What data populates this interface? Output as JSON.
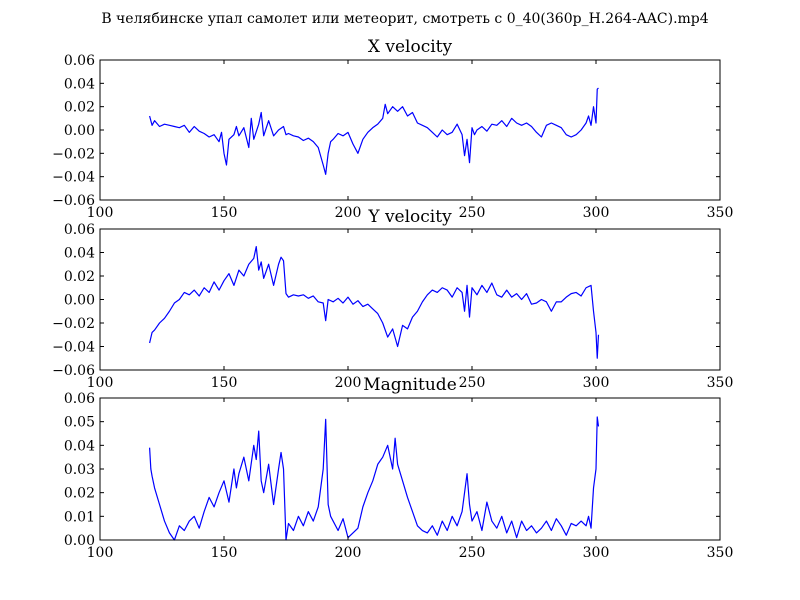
{
  "figure": {
    "suptitle": "В челябинске упал самолет или метеорит, смотреть с 0_40(360p_H.264-AAC).mp4"
  },
  "style": {
    "line_color": "#0000ff",
    "axes_color": "#000000",
    "background": "#ffffff"
  },
  "chart_data": [
    {
      "type": "line",
      "title": "X velocity",
      "xlabel": "",
      "ylabel": "",
      "xlim": [
        100,
        350
      ],
      "ylim": [
        -0.06,
        0.06
      ],
      "xticks": [
        100,
        150,
        200,
        250,
        300,
        350
      ],
      "yticks": [
        -0.06,
        -0.04,
        -0.02,
        0.0,
        0.02,
        0.04,
        0.06
      ],
      "xticklabels": [
        "100",
        "150",
        "200",
        "250",
        "300",
        "350"
      ],
      "yticklabels": [
        "−0.06",
        "−0.04",
        "−0.02",
        "0.00",
        "0.02",
        "0.04",
        "0.06"
      ],
      "grid": false,
      "series": [
        {
          "x": [
            120,
            121,
            122,
            124,
            126,
            128,
            130,
            132,
            134,
            136,
            138,
            140,
            142,
            144,
            146,
            148,
            149,
            150,
            151,
            152,
            154,
            155,
            156,
            158,
            160,
            161,
            162,
            164,
            165,
            166,
            168,
            170,
            172,
            174,
            175,
            176,
            178,
            180,
            182,
            184,
            186,
            188,
            190,
            191,
            192,
            193,
            194,
            196,
            198,
            200,
            202,
            204,
            206,
            208,
            210,
            212,
            214,
            215,
            216,
            218,
            220,
            222,
            224,
            226,
            228,
            230,
            232,
            234,
            236,
            238,
            240,
            242,
            244,
            246,
            247,
            248,
            249,
            250,
            251,
            252,
            254,
            256,
            258,
            260,
            262,
            264,
            266,
            268,
            270,
            272,
            274,
            276,
            278,
            280,
            282,
            284,
            286,
            288,
            290,
            292,
            294,
            296,
            297,
            298,
            299,
            300,
            300.5,
            301
          ],
          "y": [
            0.012,
            0.004,
            0.008,
            0.003,
            0.005,
            0.004,
            0.003,
            0.002,
            0.004,
            -0.002,
            0.003,
            -0.001,
            -0.003,
            -0.006,
            -0.004,
            -0.01,
            -0.002,
            -0.02,
            -0.03,
            -0.008,
            -0.004,
            0.003,
            -0.005,
            0.002,
            -0.015,
            0.01,
            -0.008,
            0.005,
            0.015,
            -0.005,
            0.008,
            -0.005,
            0.0,
            0.003,
            -0.004,
            -0.003,
            -0.005,
            -0.006,
            -0.009,
            -0.007,
            -0.01,
            -0.015,
            -0.03,
            -0.038,
            -0.02,
            -0.01,
            -0.008,
            -0.003,
            -0.005,
            -0.002,
            -0.012,
            -0.02,
            -0.008,
            -0.002,
            0.002,
            0.005,
            0.01,
            0.022,
            0.014,
            0.02,
            0.016,
            0.02,
            0.012,
            0.015,
            0.006,
            0.004,
            0.002,
            -0.002,
            -0.006,
            0.0,
            -0.004,
            -0.002,
            0.005,
            -0.004,
            -0.022,
            -0.008,
            -0.028,
            0.002,
            -0.004,
            0.0,
            0.003,
            -0.001,
            0.005,
            0.004,
            0.008,
            0.003,
            0.01,
            0.006,
            0.004,
            0.006,
            0.003,
            -0.002,
            -0.006,
            0.004,
            0.006,
            0.004,
            0.002,
            -0.004,
            -0.006,
            -0.004,
            0.0,
            0.006,
            0.012,
            0.004,
            0.02,
            0.006,
            0.035,
            0.036
          ]
        }
      ]
    },
    {
      "type": "line",
      "title": "Y velocity",
      "xlabel": "",
      "ylabel": "",
      "xlim": [
        100,
        350
      ],
      "ylim": [
        -0.06,
        0.06
      ],
      "xticks": [
        100,
        150,
        200,
        250,
        300,
        350
      ],
      "yticks": [
        -0.06,
        -0.04,
        -0.02,
        0.0,
        0.02,
        0.04,
        0.06
      ],
      "xticklabels": [
        "100",
        "150",
        "200",
        "250",
        "300",
        "350"
      ],
      "yticklabels": [
        "−0.06",
        "−0.04",
        "−0.02",
        "0.00",
        "0.02",
        "0.04",
        "0.06"
      ],
      "grid": false,
      "series": [
        {
          "x": [
            120,
            121,
            122,
            124,
            126,
            128,
            130,
            132,
            134,
            136,
            138,
            140,
            142,
            144,
            146,
            148,
            150,
            152,
            154,
            156,
            158,
            160,
            162,
            163,
            164,
            165,
            166,
            168,
            170,
            172,
            173,
            174,
            175,
            176,
            178,
            180,
            182,
            184,
            186,
            188,
            190,
            191,
            192,
            194,
            196,
            198,
            200,
            202,
            204,
            206,
            208,
            210,
            212,
            214,
            216,
            218,
            220,
            222,
            224,
            226,
            228,
            230,
            232,
            234,
            236,
            238,
            240,
            242,
            244,
            246,
            247,
            248,
            249,
            250,
            252,
            254,
            256,
            258,
            260,
            262,
            264,
            266,
            268,
            270,
            272,
            274,
            276,
            278,
            280,
            282,
            284,
            286,
            288,
            290,
            292,
            294,
            296,
            298,
            299,
            300,
            300.5,
            301
          ],
          "y": [
            -0.037,
            -0.028,
            -0.026,
            -0.02,
            -0.016,
            -0.01,
            -0.003,
            0.0,
            0.006,
            0.004,
            0.008,
            0.003,
            0.01,
            0.006,
            0.015,
            0.008,
            0.016,
            0.022,
            0.012,
            0.025,
            0.02,
            0.03,
            0.035,
            0.045,
            0.025,
            0.032,
            0.018,
            0.03,
            0.012,
            0.03,
            0.036,
            0.033,
            0.005,
            0.002,
            0.004,
            0.003,
            0.004,
            0.001,
            0.003,
            -0.002,
            -0.003,
            -0.018,
            0.0,
            -0.002,
            0.001,
            -0.003,
            0.002,
            -0.004,
            -0.001,
            -0.006,
            -0.004,
            -0.008,
            -0.012,
            -0.02,
            -0.032,
            -0.025,
            -0.04,
            -0.022,
            -0.025,
            -0.015,
            -0.01,
            -0.002,
            0.004,
            0.008,
            0.006,
            0.01,
            0.008,
            0.002,
            0.01,
            0.006,
            -0.01,
            0.012,
            -0.015,
            0.01,
            0.004,
            0.012,
            0.006,
            0.014,
            0.004,
            0.002,
            0.008,
            0.002,
            0.005,
            0.0,
            0.005,
            -0.004,
            -0.003,
            0.0,
            -0.002,
            -0.01,
            -0.002,
            -0.002,
            0.002,
            0.005,
            0.006,
            0.003,
            0.01,
            0.012,
            -0.01,
            -0.028,
            -0.05,
            -0.03
          ]
        }
      ]
    },
    {
      "type": "line",
      "title": "Magnitude",
      "xlabel": "",
      "ylabel": "",
      "xlim": [
        100,
        350
      ],
      "ylim": [
        0.0,
        0.06
      ],
      "xticks": [
        100,
        150,
        200,
        250,
        300,
        350
      ],
      "yticks": [
        0.0,
        0.01,
        0.02,
        0.03,
        0.04,
        0.05,
        0.06
      ],
      "xticklabels": [
        "100",
        "150",
        "200",
        "250",
        "300",
        "350"
      ],
      "yticklabels": [
        "0.00",
        "0.01",
        "0.02",
        "0.03",
        "0.04",
        "0.05",
        "0.06"
      ],
      "grid": false,
      "series": [
        {
          "x": [
            120,
            120.5,
            121,
            122,
            124,
            126,
            128,
            130,
            132,
            134,
            136,
            138,
            140,
            142,
            144,
            146,
            148,
            150,
            152,
            154,
            155,
            156,
            158,
            160,
            162,
            163,
            164,
            165,
            166,
            168,
            170,
            172,
            173,
            174,
            175,
            176,
            178,
            180,
            182,
            184,
            186,
            188,
            190,
            191,
            192,
            193,
            194,
            196,
            198,
            200,
            202,
            204,
            206,
            208,
            210,
            212,
            214,
            216,
            218,
            219,
            220,
            222,
            224,
            226,
            228,
            230,
            232,
            234,
            236,
            238,
            240,
            242,
            244,
            246,
            248,
            249,
            250,
            252,
            254,
            256,
            258,
            260,
            262,
            264,
            266,
            268,
            270,
            272,
            274,
            276,
            278,
            280,
            282,
            284,
            286,
            288,
            290,
            292,
            294,
            296,
            297,
            298,
            299,
            300,
            300.5,
            301
          ],
          "y": [
            0.039,
            0.03,
            0.027,
            0.022,
            0.015,
            0.008,
            0.003,
            0.0,
            0.006,
            0.004,
            0.008,
            0.01,
            0.005,
            0.012,
            0.018,
            0.014,
            0.02,
            0.025,
            0.016,
            0.03,
            0.022,
            0.028,
            0.035,
            0.025,
            0.04,
            0.034,
            0.046,
            0.025,
            0.02,
            0.032,
            0.015,
            0.03,
            0.037,
            0.03,
            0.0,
            0.007,
            0.004,
            0.01,
            0.006,
            0.012,
            0.008,
            0.014,
            0.03,
            0.051,
            0.015,
            0.01,
            0.008,
            0.004,
            0.009,
            0.001,
            0.003,
            0.005,
            0.014,
            0.02,
            0.025,
            0.032,
            0.035,
            0.04,
            0.03,
            0.043,
            0.032,
            0.025,
            0.018,
            0.012,
            0.006,
            0.004,
            0.003,
            0.006,
            0.002,
            0.008,
            0.004,
            0.01,
            0.006,
            0.012,
            0.028,
            0.015,
            0.008,
            0.012,
            0.004,
            0.016,
            0.008,
            0.005,
            0.01,
            0.003,
            0.008,
            0.001,
            0.008,
            0.004,
            0.006,
            0.003,
            0.005,
            0.008,
            0.004,
            0.009,
            0.006,
            0.002,
            0.007,
            0.006,
            0.008,
            0.006,
            0.01,
            0.005,
            0.022,
            0.03,
            0.052,
            0.048
          ]
        }
      ]
    }
  ]
}
